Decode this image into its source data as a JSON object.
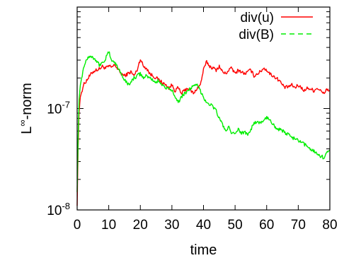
{
  "chart_data": {
    "type": "line",
    "xlabel": "time",
    "ylabel_base": "L",
    "ylabel_sup": "∞",
    "ylabel_rest": "-norm",
    "xlim": [
      0,
      80
    ],
    "ylim": [
      1e-08,
      1e-06
    ],
    "yscale": "log",
    "grid": false,
    "legend_position": "top-right",
    "x_ticks": [
      {
        "value": 0,
        "label": "0"
      },
      {
        "value": 10,
        "label": "10"
      },
      {
        "value": 20,
        "label": "20"
      },
      {
        "value": 30,
        "label": "30"
      },
      {
        "value": 40,
        "label": "40"
      },
      {
        "value": 50,
        "label": "50"
      },
      {
        "value": 60,
        "label": "60"
      },
      {
        "value": 70,
        "label": "70"
      },
      {
        "value": 80,
        "label": "80"
      }
    ],
    "y_ticks": [
      {
        "value": 1e-08,
        "base": "10",
        "exp": "-8"
      },
      {
        "value": 1e-07,
        "base": "10",
        "exp": "-7"
      }
    ],
    "series": [
      {
        "name": "div(u)",
        "color": "#ff0000",
        "dash": "solid",
        "x": [
          0,
          0.3,
          0.6,
          1,
          2,
          3,
          4,
          5,
          6,
          7,
          8,
          9,
          10,
          11,
          12,
          13,
          14,
          15,
          16,
          17,
          18,
          19,
          20,
          21,
          22,
          23,
          24,
          25,
          26,
          27,
          28,
          29,
          30,
          31,
          32,
          33,
          34,
          35,
          36,
          37,
          38,
          39,
          40,
          41,
          42,
          43,
          44,
          45,
          46,
          47,
          48,
          49,
          50,
          51,
          52,
          53,
          54,
          55,
          56,
          57,
          58,
          59,
          60,
          61,
          62,
          63,
          64,
          65,
          66,
          67,
          68,
          69,
          70,
          71,
          72,
          73,
          74,
          75,
          76,
          77,
          78,
          79,
          80
        ],
        "y": [
          1.1e-08,
          4e-08,
          9e-08,
          1.3e-07,
          1.7e-07,
          1.9e-07,
          2.1e-07,
          2.3e-07,
          2.4e-07,
          2.45e-07,
          2.6e-07,
          2.5e-07,
          2.6e-07,
          2.55e-07,
          2.7e-07,
          2.4e-07,
          2.2e-07,
          2.1e-07,
          2.2e-07,
          2.3e-07,
          2.1e-07,
          2.4e-07,
          3.1e-07,
          2.6e-07,
          2.5e-07,
          2.2e-07,
          2.1e-07,
          2e-07,
          1.9e-07,
          1.8e-07,
          1.7e-07,
          1.6e-07,
          1.7e-07,
          1.5e-07,
          1.6e-07,
          1.4e-07,
          1.5e-07,
          1.6e-07,
          1.5e-07,
          1.4e-07,
          1.6e-07,
          1.7e-07,
          2.4e-07,
          2.9e-07,
          2.6e-07,
          2.5e-07,
          2.4e-07,
          2.6e-07,
          2.3e-07,
          2.2e-07,
          2.4e-07,
          2.5e-07,
          2.2e-07,
          2.4e-07,
          2.3e-07,
          2.2e-07,
          2.3e-07,
          2.4e-07,
          2.1e-07,
          2.2e-07,
          2.3e-07,
          2.5e-07,
          2.4e-07,
          2.2e-07,
          2.1e-07,
          2e-07,
          1.9e-07,
          1.7e-07,
          1.6e-07,
          1.65e-07,
          1.7e-07,
          1.6e-07,
          1.7e-07,
          1.6e-07,
          1.5e-07,
          1.6e-07,
          1.55e-07,
          1.5e-07,
          1.6e-07,
          1.5e-07,
          1.4e-07,
          1.55e-07,
          1.5e-07
        ]
      },
      {
        "name": "div(B)",
        "color": "#00ee00",
        "dash": "dashed",
        "x": [
          0,
          0.3,
          0.6,
          1,
          2,
          3,
          4,
          5,
          6,
          7,
          8,
          9,
          10,
          11,
          12,
          13,
          14,
          15,
          16,
          17,
          18,
          19,
          20,
          21,
          22,
          23,
          24,
          25,
          26,
          27,
          28,
          29,
          30,
          31,
          32,
          33,
          34,
          35,
          36,
          37,
          38,
          39,
          40,
          41,
          42,
          43,
          44,
          45,
          46,
          47,
          48,
          49,
          50,
          51,
          52,
          53,
          54,
          55,
          56,
          57,
          58,
          59,
          60,
          61,
          62,
          63,
          64,
          65,
          66,
          67,
          68,
          69,
          70,
          71,
          72,
          73,
          74,
          75,
          76,
          77,
          78,
          79,
          80
        ],
        "y": [
          1.5e-08,
          5e-08,
          1.2e-07,
          1.7e-07,
          2.5e-07,
          3.1e-07,
          3.3e-07,
          3.2e-07,
          3e-07,
          2.7e-07,
          2.8e-07,
          3.1e-07,
          3.6e-07,
          3e-07,
          2.8e-07,
          2.5e-07,
          2.2e-07,
          1.9e-07,
          1.75e-07,
          1.8e-07,
          2e-07,
          2.1e-07,
          2.2e-07,
          2e-07,
          2.1e-07,
          2e-07,
          1.9e-07,
          1.8e-07,
          1.9e-07,
          1.7e-07,
          1.6e-07,
          1.55e-07,
          1.5e-07,
          1.35e-07,
          1.15e-07,
          1.3e-07,
          1.4e-07,
          1.5e-07,
          1.6e-07,
          1.65e-07,
          1.7e-07,
          1.5e-07,
          1.3e-07,
          1.15e-07,
          1.1e-07,
          1.05e-07,
          9.5e-08,
          8e-08,
          7e-08,
          6e-08,
          6.5e-08,
          5.5e-08,
          5.8e-08,
          6.2e-08,
          5.7e-08,
          5.9e-08,
          5.6e-08,
          6.3e-08,
          7e-08,
          7.5e-08,
          7.2e-08,
          7.5e-08,
          8.2e-08,
          7.8e-08,
          7e-08,
          6.5e-08,
          6.2e-08,
          6e-08,
          5.7e-08,
          5.5e-08,
          5.2e-08,
          5e-08,
          4.8e-08,
          4.6e-08,
          4.4e-08,
          4.2e-08,
          4e-08,
          3.8e-08,
          3.6e-08,
          3.4e-08,
          3.3e-08,
          3.6e-08,
          3.9e-08
        ]
      }
    ]
  }
}
